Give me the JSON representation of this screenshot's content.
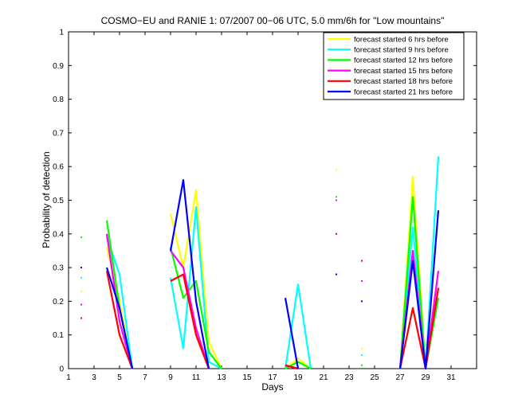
{
  "chart_data": {
    "type": "line",
    "title": "COSMO−EU and RANIE 1: 07/2007 00−06 UTC, 5.0 mm/6h for \"Low mountains\"",
    "xlabel": "Days",
    "ylabel": "Probability of detection",
    "xlim": [
      1,
      33
    ],
    "ylim": [
      0,
      1
    ],
    "xticks": [
      1,
      3,
      5,
      7,
      9,
      11,
      13,
      15,
      17,
      19,
      21,
      23,
      25,
      27,
      29,
      31
    ],
    "xtick_labels": [
      "1",
      "3",
      "5",
      "7",
      "9",
      "11",
      "13",
      "15",
      "17",
      "19",
      "21",
      "23",
      "25",
      "27",
      "29",
      "31"
    ],
    "yticks": [
      0,
      0.1,
      0.2,
      0.3,
      0.4,
      0.5,
      0.6,
      0.7,
      0.8,
      0.9,
      1
    ],
    "ytick_labels": [
      "0",
      "0.1",
      "0.2",
      "0.3",
      "0.4",
      "0.5",
      "0.6",
      "0.7",
      "0.8",
      "0.9",
      "1"
    ],
    "legend_position": "top-right",
    "grid": false,
    "series": [
      {
        "name": "forecast started 6 hrs before",
        "color": "#ffff00",
        "values": [
          null,
          0.23,
          null,
          0.36,
          0.2,
          0.0,
          null,
          null,
          0.46,
          0.3,
          0.53,
          0.08,
          0.0,
          null,
          null,
          null,
          null,
          0.0,
          0.03,
          0.0,
          null,
          0.59,
          null,
          0.06,
          null,
          null,
          0.0,
          0.57,
          0.0,
          0.47,
          null
        ]
      },
      {
        "name": "forecast started 9 hrs before",
        "color": "#00ffff",
        "values": [
          null,
          0.27,
          null,
          0.39,
          0.28,
          0.0,
          null,
          null,
          0.27,
          0.06,
          0.48,
          0.02,
          0.0,
          null,
          null,
          null,
          null,
          0.0,
          0.25,
          0.0,
          null,
          0.5,
          null,
          0.04,
          null,
          null,
          0.0,
          0.42,
          0.0,
          0.63,
          null
        ]
      },
      {
        "name": "forecast started 12 hrs before",
        "color": "#00ff00",
        "values": [
          null,
          0.39,
          null,
          0.44,
          0.18,
          0.0,
          null,
          null,
          0.36,
          0.21,
          0.26,
          0.05,
          0.0,
          null,
          null,
          null,
          null,
          0.0,
          0.02,
          0.0,
          null,
          0.51,
          null,
          0.01,
          null,
          null,
          0.0,
          0.51,
          0.0,
          0.21,
          null
        ]
      },
      {
        "name": "forecast started 15 hrs before",
        "color": "#ff00ff",
        "values": [
          null,
          0.19,
          null,
          0.4,
          0.14,
          0.0,
          null,
          null,
          0.35,
          0.3,
          0.12,
          0.0,
          null,
          null,
          null,
          null,
          null,
          0.01,
          0.0,
          null,
          null,
          0.5,
          null,
          0.26,
          null,
          null,
          0.0,
          0.35,
          0.0,
          0.29,
          null
        ]
      },
      {
        "name": "forecast started 18 hrs before",
        "color": "#ff0000",
        "values": [
          null,
          0.15,
          null,
          0.29,
          0.1,
          0.0,
          null,
          null,
          0.26,
          0.28,
          0.1,
          0.0,
          null,
          null,
          null,
          null,
          null,
          0.01,
          0.0,
          null,
          null,
          0.4,
          null,
          0.32,
          null,
          null,
          0.0,
          0.18,
          0.0,
          0.24,
          null
        ]
      },
      {
        "name": "forecast started 21 hrs before",
        "color": "#0000ff",
        "values": [
          null,
          0.3,
          null,
          0.3,
          0.18,
          0.0,
          null,
          null,
          0.35,
          0.56,
          0.2,
          0.0,
          null,
          null,
          null,
          null,
          null,
          0.21,
          0.0,
          null,
          null,
          0.28,
          null,
          0.2,
          null,
          null,
          0.0,
          0.32,
          0.0,
          0.47,
          null
        ]
      }
    ]
  }
}
